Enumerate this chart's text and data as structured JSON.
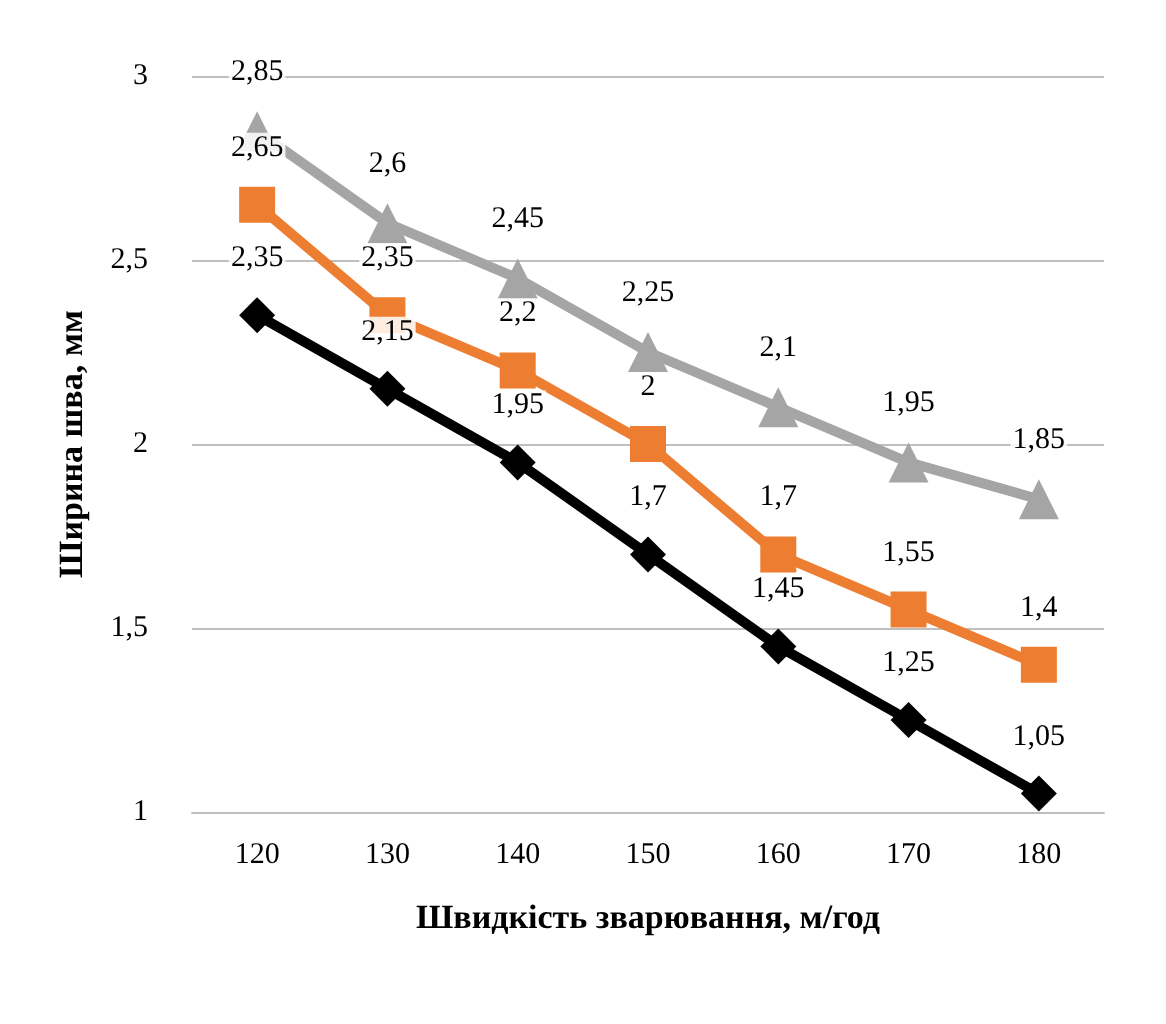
{
  "chart_data": {
    "type": "line",
    "xlabel": "Швидкість зварювання, м/год",
    "ylabel": "Ширина шва, мм",
    "categories": [
      "120",
      "130",
      "140",
      "150",
      "160",
      "170",
      "180"
    ],
    "series": [
      {
        "color": "#a5a5a5",
        "marker": "triangle",
        "values": [
          2.85,
          2.6,
          2.45,
          2.25,
          2.1,
          1.95,
          1.85
        ],
        "value_labels": [
          "2,85",
          "2,6",
          "2,45",
          "2,25",
          "2,1",
          "1,95",
          "1,85"
        ]
      },
      {
        "color": "#ed7d31",
        "marker": "square",
        "values": [
          2.65,
          2.35,
          2.2,
          2,
          1.7,
          1.55,
          1.4
        ],
        "value_labels": [
          "2,65",
          "2,35",
          "2,2",
          "2",
          "1,7",
          "1,55",
          "1,4"
        ]
      },
      {
        "color": "#000000",
        "marker": "diamond",
        "values": [
          2.35,
          2.15,
          1.95,
          1.7,
          1.45,
          1.25,
          1.05
        ],
        "value_labels": [
          "2,35",
          "2,15",
          "1,95",
          "1,7",
          "1,45",
          "1,25",
          "1,05"
        ]
      }
    ],
    "ylim": [
      1,
      3
    ],
    "yticks": [
      1,
      {
        "value": 1.5,
        "label": "1,5"
      },
      2,
      {
        "value": 2.5,
        "label": "2,5"
      },
      3
    ],
    "grid": "y",
    "line_style": "solid"
  }
}
